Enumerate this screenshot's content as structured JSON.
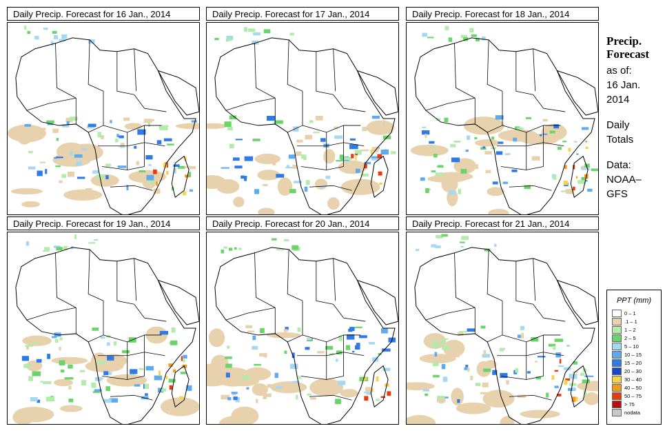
{
  "panels": [
    {
      "title": "Daily Precip. Forecast for  16 Jan., 2014"
    },
    {
      "title": "Daily Precip. Forecast for  17 Jan., 2014"
    },
    {
      "title": "Daily Precip. Forecast for  18 Jan., 2014"
    },
    {
      "title": "Daily Precip. Forecast for  19 Jan., 2014"
    },
    {
      "title": "Daily Precip. Forecast for  20 Jan., 2014"
    },
    {
      "title": "Daily Precip. Forecast for  21 Jan., 2014"
    }
  ],
  "side": {
    "heading_line1": "Precip.",
    "heading_line2": "Forecast",
    "asof_label": "as of:",
    "date_line1": "16 Jan.",
    "date_line2": "2014",
    "daily_line1": "Daily",
    "daily_line2": "Totals",
    "data_line1": "Data:",
    "data_line2": "NOAA–",
    "data_line3": "GFS"
  },
  "legend": {
    "title": "PPT (mm)",
    "items": [
      {
        "label": "0 – 1",
        "color": "#ffffff"
      },
      {
        "label": ".1 – 1",
        "color": "#e8d2ad"
      },
      {
        "label": "1 – 2",
        "color": "#b2ecaa"
      },
      {
        "label": "2 – 5",
        "color": "#6ad46a"
      },
      {
        "label": "5 – 10",
        "color": "#a6d8f2"
      },
      {
        "label": "10 – 15",
        "color": "#5eaaf0"
      },
      {
        "label": "15 – 20",
        "color": "#2e7ae6"
      },
      {
        "label": "20 – 30",
        "color": "#1a46c8"
      },
      {
        "label": "30 – 40",
        "color": "#f8d24a"
      },
      {
        "label": "40 – 50",
        "color": "#f49a18"
      },
      {
        "label": "50 – 75",
        "color": "#e83a10"
      },
      {
        "label": "> 75",
        "color": "#b8100c"
      },
      {
        "label": "nodata",
        "color": "#c8c8c8"
      }
    ]
  }
}
